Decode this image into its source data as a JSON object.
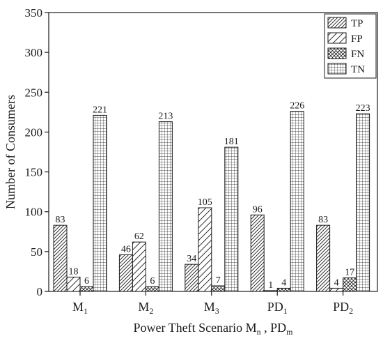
{
  "chart_data": {
    "type": "bar",
    "categories": [
      {
        "base": "M",
        "sub": "1"
      },
      {
        "base": "M",
        "sub": "2"
      },
      {
        "base": "M",
        "sub": "3"
      },
      {
        "base": "PD",
        "sub": "1"
      },
      {
        "base": "PD",
        "sub": "2"
      }
    ],
    "series": [
      {
        "name": "TP",
        "values": [
          83,
          46,
          34,
          96,
          83
        ],
        "pattern": "hatch-dense"
      },
      {
        "name": "FP",
        "values": [
          18,
          62,
          105,
          1,
          4
        ],
        "pattern": "hatch-sparse"
      },
      {
        "name": "FN",
        "values": [
          6,
          6,
          7,
          4,
          17
        ],
        "pattern": "crosshatch"
      },
      {
        "name": "TN",
        "values": [
          221,
          213,
          181,
          226,
          223
        ],
        "pattern": "grid"
      }
    ],
    "xlabel": {
      "text1": "Power Theft Scenario M",
      "sub1": "n",
      "text2": " , PD",
      "sub2": "m"
    },
    "ylabel": "Number of Consumers",
    "ylim": [
      0,
      350
    ],
    "yticks": [
      0,
      50,
      100,
      150,
      200,
      250,
      300,
      350
    ],
    "legend_position": "top-right",
    "grid": false,
    "bar_color": "#ffffff",
    "stroke_color": "#1a1a1a"
  }
}
